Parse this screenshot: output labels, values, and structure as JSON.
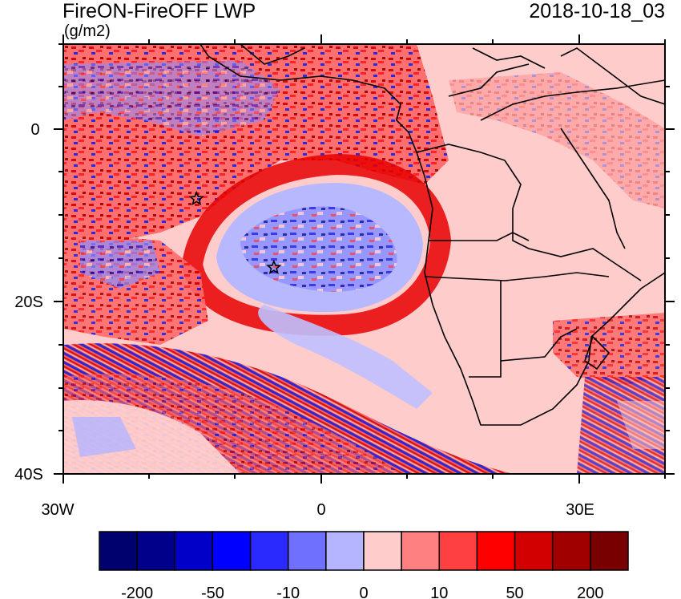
{
  "header": {
    "title": "FireON-FireOFF LWP",
    "units": "(g/m2)",
    "timestamp": "2018-10-18_03"
  },
  "axes": {
    "lon_ticks": [
      {
        "value": -30,
        "label": "30W"
      },
      {
        "value": 0,
        "label": "0"
      },
      {
        "value": 30,
        "label": "30E"
      }
    ],
    "lat_ticks": [
      {
        "value": 0,
        "label": "0"
      },
      {
        "value": -20,
        "label": "20S"
      },
      {
        "value": -40,
        "label": "40S"
      }
    ],
    "lon_range": [
      -30,
      40
    ],
    "lat_range": [
      -40,
      10
    ]
  },
  "colorbar": {
    "colors": [
      "#00006e",
      "#00008b",
      "#0000c8",
      "#0000ff",
      "#2a2aff",
      "#7070ff",
      "#b4b4ff",
      "#ffcccc",
      "#ff8080",
      "#ff4040",
      "#ff0000",
      "#d20000",
      "#a00000",
      "#780000"
    ],
    "labels": [
      "-200",
      "-50",
      "-10",
      "0",
      "10",
      "50",
      "200"
    ]
  },
  "markers": [
    {
      "lon": -14.5,
      "lat": -8,
      "symbol": "star"
    },
    {
      "lon": -5.5,
      "lat": -16,
      "symbol": "star"
    }
  ]
}
